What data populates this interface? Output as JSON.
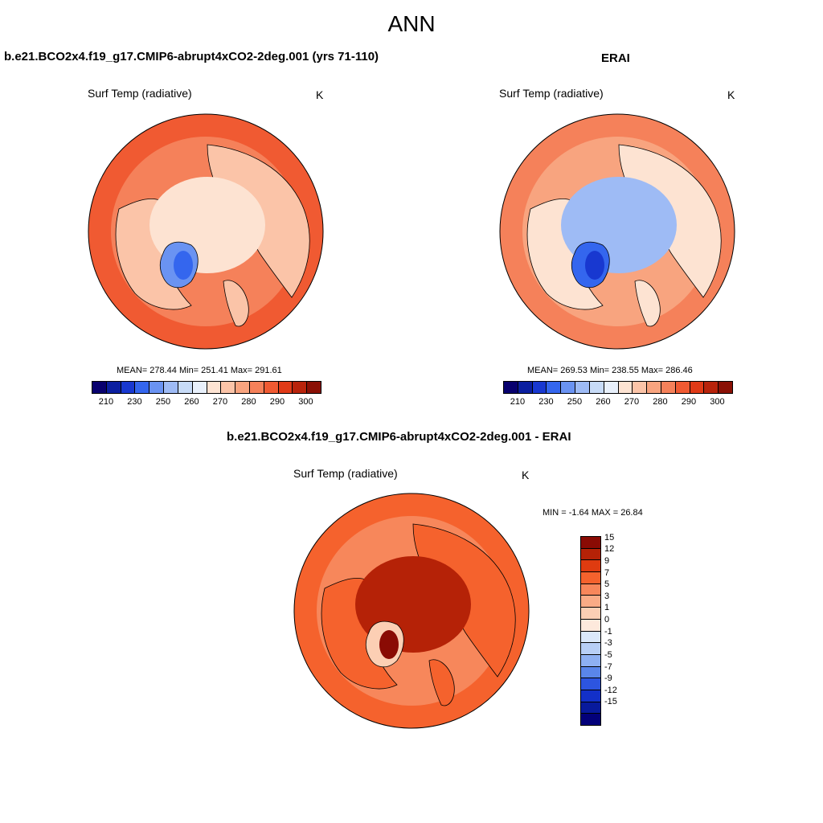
{
  "title": "ANN",
  "panels": {
    "model": {
      "title": "b.e21.BCO2x4.f19_g17.CMIP6-abrupt4xCO2-2deg.001 (yrs 71-110)",
      "variable": "Surf Temp (radiative)",
      "units": "K",
      "stats": "MEAN= 278.44  Min= 251.41  Max= 291.61"
    },
    "obs": {
      "title": "ERAI",
      "variable": "Surf Temp (radiative)",
      "units": "K",
      "stats": "MEAN= 269.53  Min= 238.55  Max= 286.46"
    },
    "diff": {
      "title": "b.e21.BCO2x4.f19_g17.CMIP6-abrupt4xCO2-2deg.001 - ERAI",
      "variable": "Surf Temp (radiative)",
      "units": "K",
      "stats": "MIN =  -1.64 MAX =  26.84"
    }
  },
  "colorbar_abs": {
    "colors": [
      "#08006e",
      "#0b1fa0",
      "#1838d0",
      "#3466ee",
      "#6a93f2",
      "#9ebbf5",
      "#c7dbf7",
      "#e8f0fb",
      "#fde3d2",
      "#fbc4a8",
      "#f8a47f",
      "#f5815a",
      "#f05a32",
      "#e03a17",
      "#b8230b",
      "#8a1005"
    ],
    "labels": [
      "210",
      "230",
      "250",
      "260",
      "270",
      "280",
      "290",
      "300"
    ]
  },
  "colorbar_diff": {
    "colors": [
      "#8a0b04",
      "#b52207",
      "#df3b10",
      "#f5622d",
      "#f7875b",
      "#f9ab86",
      "#fccfb4",
      "#fde9dc",
      "#dbe8fa",
      "#b8cff6",
      "#8eb0f2",
      "#5a86ea",
      "#2d55e0",
      "#1330c8",
      "#081a9c",
      "#03007a"
    ],
    "labels": [
      "15",
      "12",
      "9",
      "7",
      "5",
      "3",
      "1",
      "0",
      "-1",
      "-3",
      "-5",
      "-7",
      "-9",
      "-12",
      "-15"
    ]
  },
  "map_fills": {
    "model": {
      "ocean": "#f5815a",
      "outer": "#f05a32",
      "land": "#fbc4a8",
      "arctic": "#fde3d2",
      "ice": "#6a93f2",
      "ice_core": "#3466ee"
    },
    "obs": {
      "ocean": "#f8a47f",
      "outer": "#f5815a",
      "land": "#fde3d2",
      "arctic": "#9ebbf5",
      "ice": "#3466ee",
      "ice_core": "#1838d0"
    },
    "diff": {
      "ocean": "#f7875b",
      "outer": "#f5622d",
      "land": "#f5622d",
      "arctic": "#b52207",
      "ice": "#fccfb4",
      "ice_core": "#8a0b04"
    }
  }
}
